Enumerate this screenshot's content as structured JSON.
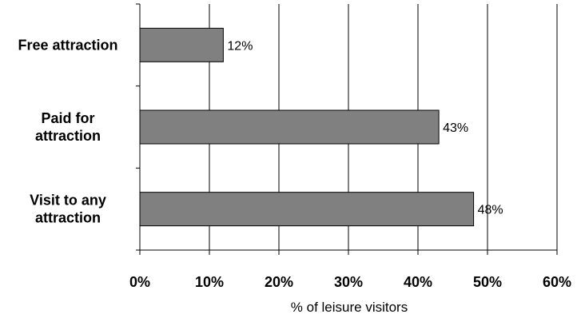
{
  "chart_data": {
    "type": "bar",
    "orientation": "horizontal",
    "categories": [
      [
        "Free attraction"
      ],
      [
        "Paid for",
        "attraction"
      ],
      [
        "Visit to any",
        "attraction"
      ]
    ],
    "values": [
      12,
      43,
      48
    ],
    "value_labels": [
      "12%",
      "43%",
      "48%"
    ],
    "xlabel": "% of leisure visitors",
    "xlim": [
      0,
      60
    ],
    "xticks": [
      0,
      10,
      20,
      30,
      40,
      50,
      60
    ],
    "xtick_labels": [
      "0%",
      "10%",
      "20%",
      "30%",
      "40%",
      "50%",
      "60%"
    ],
    "grid": "vertical",
    "legend": "none",
    "bar_color": "#808080"
  }
}
